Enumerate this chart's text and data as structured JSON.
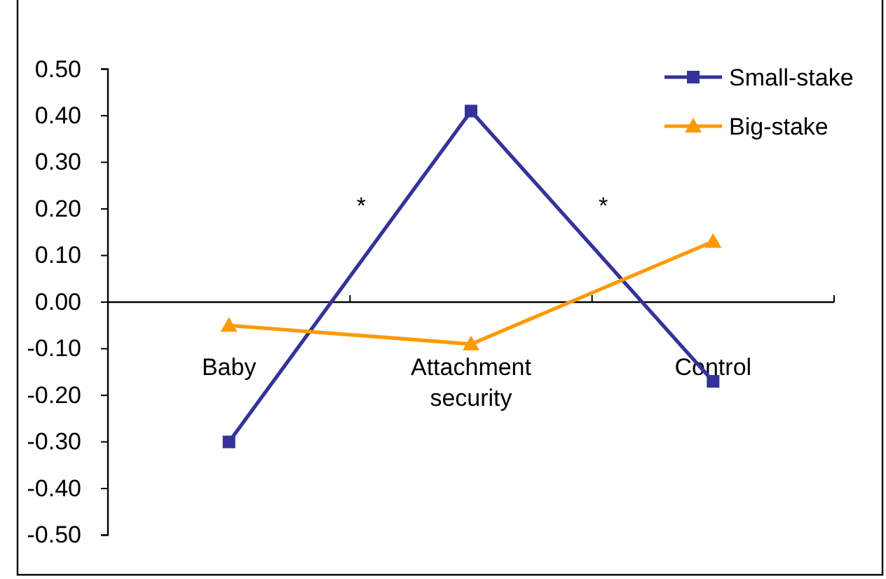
{
  "chart_data": {
    "type": "line",
    "categories": [
      "Baby",
      "Attachment security",
      "Control"
    ],
    "series": [
      {
        "name": "Small-stake",
        "color": "#333399",
        "marker": "square",
        "values": [
          -0.3,
          0.41,
          -0.17
        ]
      },
      {
        "name": "Big-stake",
        "color": "#ff9900",
        "marker": "triangle",
        "values": [
          -0.05,
          -0.09,
          0.13
        ]
      }
    ],
    "ylim": [
      -0.5,
      0.5
    ],
    "yticks": [
      {
        "value": -0.5,
        "label": "-0.50"
      },
      {
        "value": -0.4,
        "label": "-0.40"
      },
      {
        "value": -0.3,
        "label": "-0.30"
      },
      {
        "value": -0.2,
        "label": "-0.20"
      },
      {
        "value": -0.1,
        "label": "-0.10"
      },
      {
        "value": 0,
        "label": "0.00"
      },
      {
        "value": 0.1,
        "label": "0.10"
      },
      {
        "value": 0.2,
        "label": "0.20"
      },
      {
        "value": 0.3,
        "label": "0.30"
      },
      {
        "value": 0.4,
        "label": "0.40"
      },
      {
        "value": 0.5,
        "label": "0.50"
      }
    ],
    "annotations": [
      "*",
      "*"
    ],
    "legend": "top right",
    "grid": false
  }
}
